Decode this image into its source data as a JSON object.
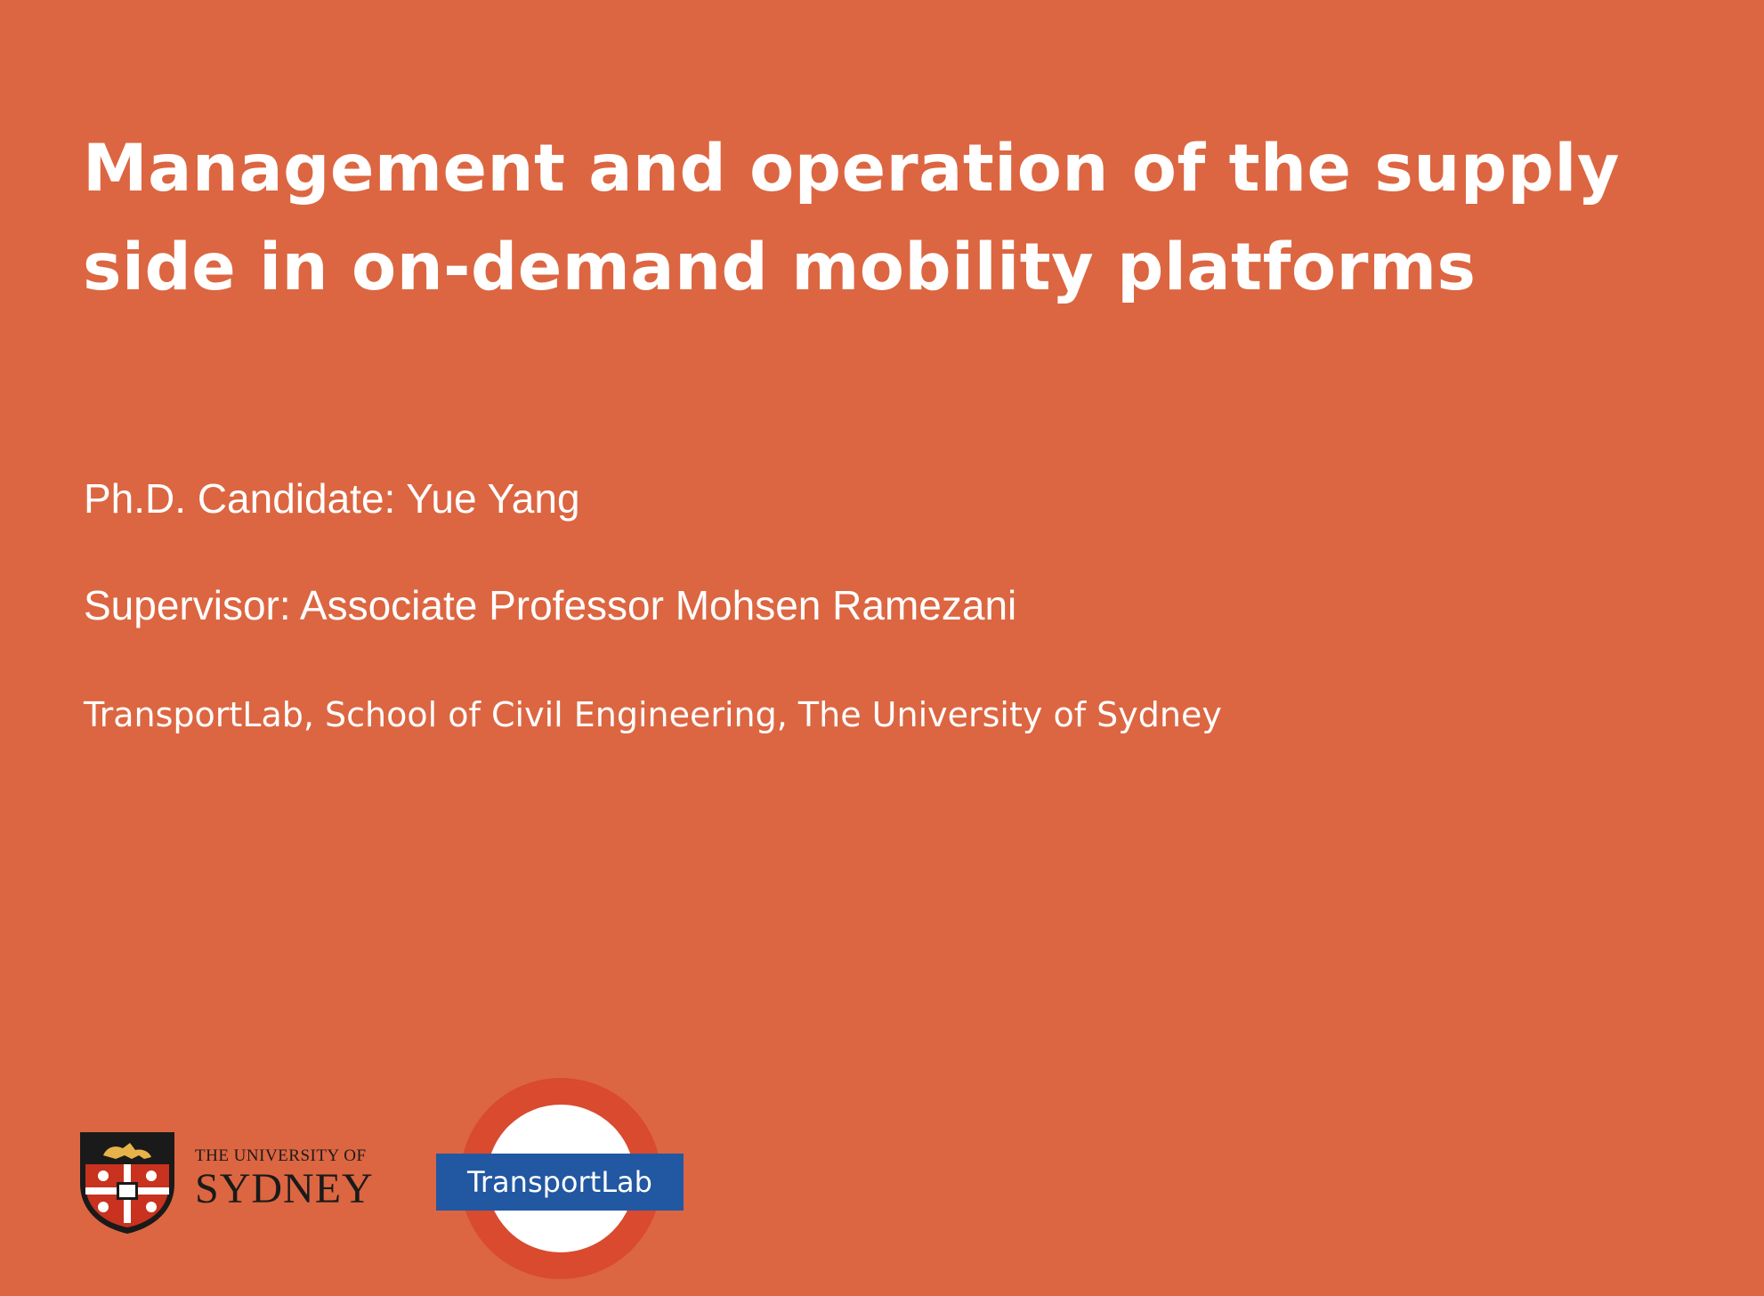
{
  "slide": {
    "background_color": "#DC6641",
    "title_lines": [
      "Management and operation of the supply",
      "side in on-demand mobility platforms"
    ],
    "candidate": "Ph.D. Candidate: Yue Yang",
    "supervisor": "Supervisor: Associate Professor Mohsen Ramezani",
    "affiliation": "TransportLab, School of Civil Engineering, The University of Sydney"
  },
  "logos": {
    "usyd": {
      "line1": "THE UNIVERSITY OF",
      "line2": "SYDNEY",
      "icon": "university-crest-icon"
    },
    "transportlab": {
      "label": "TransportLab",
      "ring_color": "#D94A2F",
      "bar_color": "#2257A2",
      "icon": "roundel-icon"
    }
  }
}
